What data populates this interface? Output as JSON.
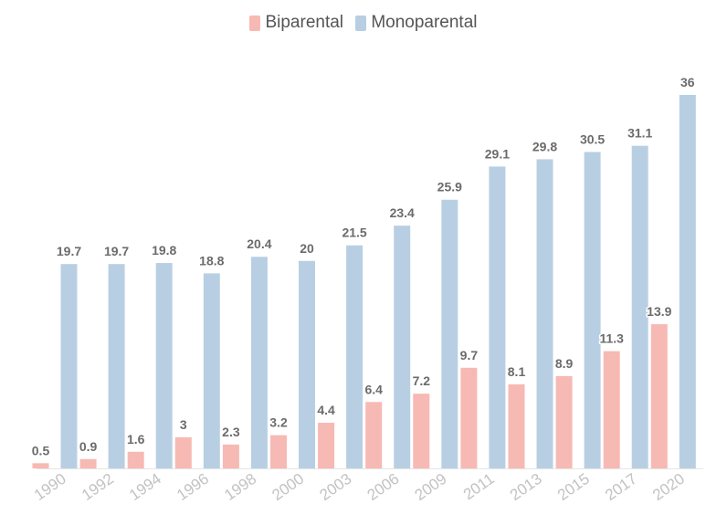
{
  "chart_data": {
    "type": "bar",
    "categories": [
      "1990",
      "1992",
      "1994",
      "1996",
      "1998",
      "2000",
      "2003",
      "2006",
      "2009",
      "2011",
      "2013",
      "2015",
      "2017",
      "2020"
    ],
    "series": [
      {
        "name": "Biparental",
        "color": "#f7b9b3",
        "values": [
          0.5,
          0.9,
          1.6,
          3,
          2.3,
          3.2,
          4.4,
          6.4,
          7.2,
          9.7,
          8.1,
          8.9,
          11.3,
          13.9
        ]
      },
      {
        "name": "Monoparental",
        "color": "#b8cfe3",
        "values": [
          19.7,
          19.7,
          19.8,
          18.8,
          20.4,
          20,
          21.5,
          23.4,
          25.9,
          29.1,
          29.8,
          30.5,
          31.1,
          36
        ]
      }
    ],
    "title": "",
    "xlabel": "",
    "ylabel": "",
    "ylim": [
      0,
      36
    ],
    "legend_position": "top-center",
    "grid": false
  }
}
